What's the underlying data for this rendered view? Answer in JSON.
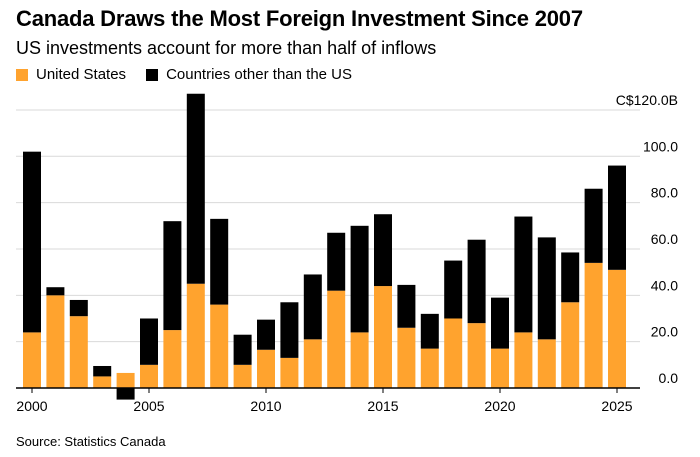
{
  "title": "Canada Draws the Most Foreign Investment Since 2007",
  "subtitle": "US investments account for more than half of inflows",
  "source": "Source: Statistics Canada",
  "colors": {
    "us": "#FFA32E",
    "other": "#000000",
    "grid": "#D9D9D9",
    "axis": "#000000"
  },
  "legend": [
    {
      "label": "United States",
      "color": "#FFA32E"
    },
    {
      "label": "Countries other than the US",
      "color": "#000000"
    }
  ],
  "chart_data": {
    "type": "bar",
    "stacked": true,
    "title": "Canada Draws the Most Foreign Investment Since 2007",
    "xlabel": "",
    "ylabel": "",
    "ylim": [
      -5,
      120
    ],
    "y_ticks": [
      {
        "value": 0,
        "label": "0.0"
      },
      {
        "value": 20,
        "label": "20.0"
      },
      {
        "value": 40,
        "label": "40.0"
      },
      {
        "value": 60,
        "label": "60.0"
      },
      {
        "value": 80,
        "label": "80.0"
      },
      {
        "value": 100,
        "label": "100.0"
      },
      {
        "value": 120,
        "label": "C$120.0B"
      }
    ],
    "x_ticks": [
      {
        "year": 2000,
        "label": "2000"
      },
      {
        "year": 2005,
        "label": "2005"
      },
      {
        "year": 2010,
        "label": "2010"
      },
      {
        "year": 2015,
        "label": "2015"
      },
      {
        "year": 2020,
        "label": "2020"
      },
      {
        "year": 2025,
        "label": "2025"
      }
    ],
    "categories": [
      2000,
      2001,
      2002,
      2003,
      2004,
      2005,
      2006,
      2007,
      2008,
      2009,
      2010,
      2011,
      2012,
      2013,
      2014,
      2015,
      2016,
      2017,
      2018,
      2019,
      2020,
      2021,
      2022,
      2023,
      2024,
      2025
    ],
    "series": [
      {
        "name": "United States",
        "values": [
          24,
          40,
          31,
          5,
          6.5,
          10,
          25,
          45,
          36,
          10,
          16.5,
          13,
          21,
          42,
          24,
          44,
          26,
          17,
          30,
          28,
          17,
          24,
          21,
          37,
          54,
          51
        ]
      },
      {
        "name": "Countries other than the US",
        "values": [
          78,
          3.5,
          7,
          4.5,
          -5,
          20,
          47,
          82,
          37,
          13,
          13,
          24,
          28,
          25,
          46,
          31,
          18.5,
          15,
          25,
          36,
          22,
          50,
          44,
          21.5,
          32,
          45
        ]
      }
    ]
  }
}
